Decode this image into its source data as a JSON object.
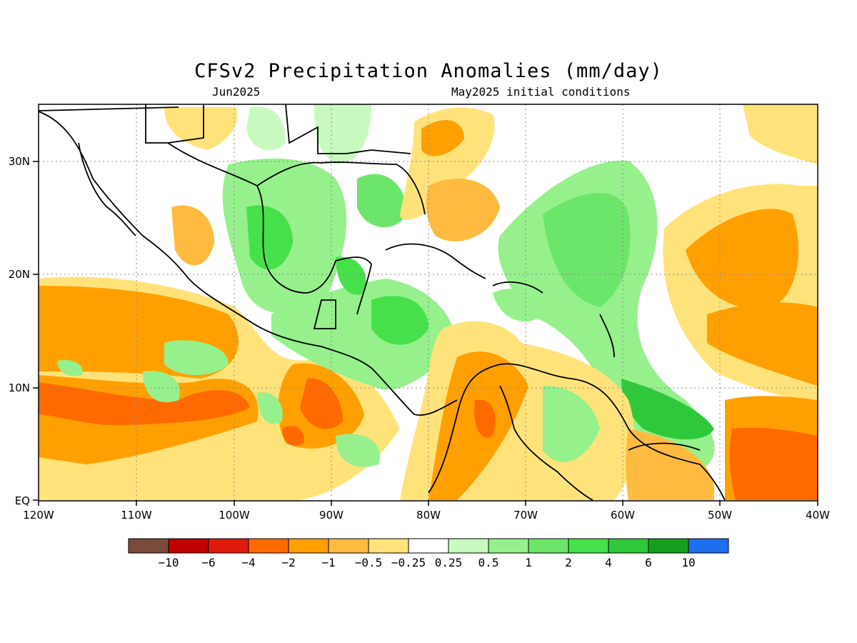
{
  "title": "CFSv2 Precipitation Anomalies (mm/day)",
  "valid_month": "Jun2025",
  "initial_conditions": "May2025 initial conditions",
  "map": {
    "region": "Central America / Caribbean",
    "lon_range": [
      -120,
      -40
    ],
    "lat_range": [
      0,
      35
    ],
    "lat_labels": [
      "30N",
      "20N",
      "10N",
      "EQ"
    ],
    "lon_labels": [
      "120W",
      "110W",
      "100W",
      "90W",
      "80W",
      "70W",
      "60W",
      "50W",
      "40W"
    ]
  },
  "colorbar": {
    "colors": [
      "#7a4a3c",
      "#c00000",
      "#e01a0a",
      "#ff6a00",
      "#ffa000",
      "#ffbb40",
      "#ffe37a",
      "#ffffff",
      "#c8fac0",
      "#96f08c",
      "#6ce66a",
      "#46e04a",
      "#2fc83a",
      "#14a01e",
      "#1e6ef0"
    ],
    "labels": [
      "−10",
      "−6",
      "−4",
      "−2",
      "−1",
      "−0.5",
      "−0.25",
      "0.25",
      "0.5",
      "1",
      "2",
      "4",
      "6",
      "10"
    ]
  }
}
